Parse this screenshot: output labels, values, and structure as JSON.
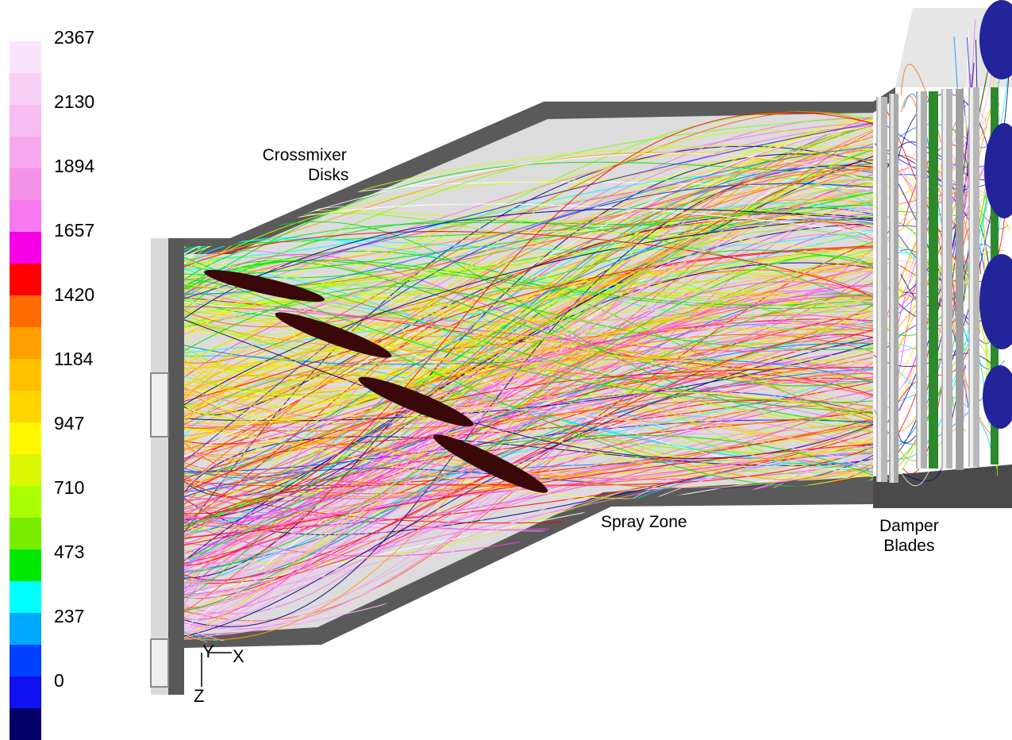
{
  "legend": {
    "colors": [
      "#fbe3fb",
      "#f8d0f6",
      "#f7bcf1",
      "#f5a8ee",
      "#f593ea",
      "#f878ef",
      "#f600e6",
      "#ff0000",
      "#ff6b00",
      "#ff9f00",
      "#ffc000",
      "#ffd500",
      "#fff700",
      "#d9f700",
      "#aaff00",
      "#77ee00",
      "#00e800",
      "#00ffff",
      "#00a8ff",
      "#0040ff",
      "#1010f0",
      "#000066"
    ],
    "tick_labels": [
      "2367",
      "2130",
      "1894",
      "1657",
      "1420",
      "1184",
      "947",
      "710",
      "473",
      "237",
      "0"
    ]
  },
  "annotations": {
    "crossmixer": [
      "Crossmixer",
      "Disks"
    ],
    "spray_zone": "Spray Zone",
    "damper": [
      "Damper",
      "Blades"
    ]
  },
  "axes": {
    "x": "X",
    "y": "Y",
    "z": "Z"
  },
  "streamline_colors": [
    "#000080",
    "#1e1ee6",
    "#0080ff",
    "#00d0ff",
    "#00ffff",
    "#00e000",
    "#80ff00",
    "#ccff00",
    "#ffff00",
    "#ffd000",
    "#ffa000",
    "#ff6000",
    "#ff0000",
    "#ff40e0",
    "#f870ee",
    "#f8a0f0",
    "#f8c8f8",
    "#ffffff"
  ]
}
